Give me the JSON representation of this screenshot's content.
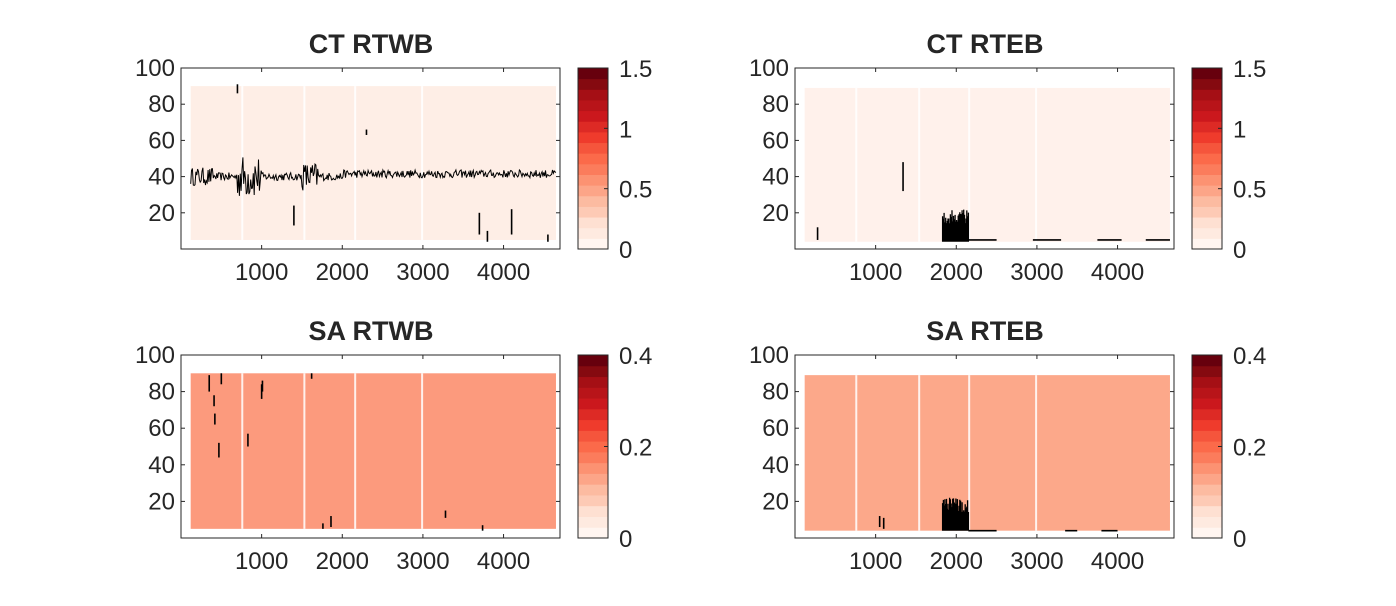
{
  "palette": {
    "reds": [
      "#fff5f0",
      "#feeae0",
      "#fee0d2",
      "#fdcab5",
      "#fcbba1",
      "#fca588",
      "#fc9272",
      "#fb7c5c",
      "#fb6a4a",
      "#f5553c",
      "#ef3b2c",
      "#dd2a25",
      "#cb181d",
      "#b81419",
      "#a50f15",
      "#850a10",
      "#67000d"
    ]
  },
  "chart_data": [
    {
      "type": "heatmap",
      "title": "CT RTWB",
      "xlim": [
        0,
        4700
      ],
      "ylim": [
        0,
        100
      ],
      "xticks": [
        1000,
        2000,
        3000,
        4000
      ],
      "yticks": [
        20,
        40,
        60,
        80,
        100
      ],
      "data_extent": {
        "x": [
          120,
          4650
        ],
        "y": [
          5,
          90
        ]
      },
      "fill_color": "#feeee6",
      "gaps_x": [
        760,
        1530,
        2160,
        2990
      ],
      "colorbar": {
        "min": 0,
        "max": 1.5,
        "ticks": [
          "0",
          "0.5",
          "1",
          "1.5"
        ],
        "tick_values": [
          0,
          0.5,
          1,
          1.5
        ]
      },
      "contour_line": {
        "x_start": 120,
        "x_end": 4650,
        "base_y": 40
      },
      "marks": [
        [
          700,
          86,
          91
        ],
        [
          1400,
          13,
          24
        ],
        [
          2300,
          63,
          66
        ],
        [
          3700,
          8,
          20
        ],
        [
          3800,
          4,
          10
        ],
        [
          4100,
          8,
          22
        ],
        [
          4550,
          4,
          8
        ]
      ]
    },
    {
      "type": "heatmap",
      "title": "CT RTEB",
      "xlim": [
        0,
        4700
      ],
      "ylim": [
        0,
        100
      ],
      "xticks": [
        1000,
        2000,
        3000,
        4000
      ],
      "yticks": [
        20,
        40,
        60,
        80,
        100
      ],
      "data_extent": {
        "x": [
          120,
          4650
        ],
        "y": [
          4,
          89
        ]
      },
      "fill_color": "#fff1eb",
      "gaps_x": [
        760,
        1540,
        2160,
        2990
      ],
      "colorbar": {
        "min": 0,
        "max": 1.5,
        "ticks": [
          "0",
          "0.5",
          "1",
          "1.5"
        ],
        "tick_values": [
          0,
          0.5,
          1,
          1.5
        ]
      },
      "marks": [
        [
          280,
          5,
          12
        ],
        [
          1340,
          32,
          48
        ]
      ],
      "clusters": [
        {
          "x": [
            1830,
            2150
          ],
          "y": [
            4,
            22
          ]
        }
      ],
      "low_bands": [
        [
          2150,
          2500,
          5
        ],
        [
          2950,
          3300,
          5
        ],
        [
          3750,
          4050,
          5
        ],
        [
          4350,
          4650,
          5
        ]
      ]
    },
    {
      "type": "heatmap",
      "title": "SA RTWB",
      "xlim": [
        0,
        4700
      ],
      "ylim": [
        0,
        100
      ],
      "xticks": [
        1000,
        2000,
        3000,
        4000
      ],
      "yticks": [
        20,
        40,
        60,
        80,
        100
      ],
      "data_extent": {
        "x": [
          120,
          4650
        ],
        "y": [
          5,
          90
        ]
      },
      "fill_color": "#fc9a7d",
      "gaps_x": [
        760,
        1530,
        2160,
        2990
      ],
      "colorbar": {
        "min": 0,
        "max": 0.4,
        "ticks": [
          "0",
          "0.2",
          "0.4"
        ],
        "tick_values": [
          0,
          0.2,
          0.4
        ]
      },
      "marks": [
        [
          350,
          80,
          89
        ],
        [
          410,
          72,
          78
        ],
        [
          420,
          62,
          68
        ],
        [
          470,
          44,
          52
        ],
        [
          500,
          84,
          90
        ],
        [
          1000,
          76,
          84
        ],
        [
          1010,
          80,
          86
        ],
        [
          830,
          50,
          57
        ],
        [
          1620,
          87,
          90
        ],
        [
          1760,
          5,
          8
        ],
        [
          1860,
          6,
          12
        ],
        [
          3280,
          11,
          15
        ],
        [
          3740,
          4,
          7
        ]
      ]
    },
    {
      "type": "heatmap",
      "title": "SA RTEB",
      "xlim": [
        0,
        4700
      ],
      "ylim": [
        0,
        100
      ],
      "xticks": [
        1000,
        2000,
        3000,
        4000
      ],
      "yticks": [
        20,
        40,
        60,
        80,
        100
      ],
      "data_extent": {
        "x": [
          120,
          4650
        ],
        "y": [
          4,
          89
        ]
      },
      "fill_color": "#fca88a",
      "gaps_x": [
        760,
        1540,
        2160,
        2990
      ],
      "colorbar": {
        "min": 0,
        "max": 0.4,
        "ticks": [
          "0",
          "0.2",
          "0.4"
        ],
        "tick_values": [
          0,
          0.2,
          0.4
        ]
      },
      "marks": [
        [
          1050,
          6,
          12
        ],
        [
          1100,
          5,
          11
        ]
      ],
      "clusters": [
        {
          "x": [
            1830,
            2150
          ],
          "y": [
            4,
            22
          ]
        }
      ],
      "low_bands": [
        [
          2150,
          2500,
          4
        ],
        [
          3350,
          3500,
          4
        ],
        [
          3800,
          4000,
          4
        ]
      ]
    }
  ]
}
